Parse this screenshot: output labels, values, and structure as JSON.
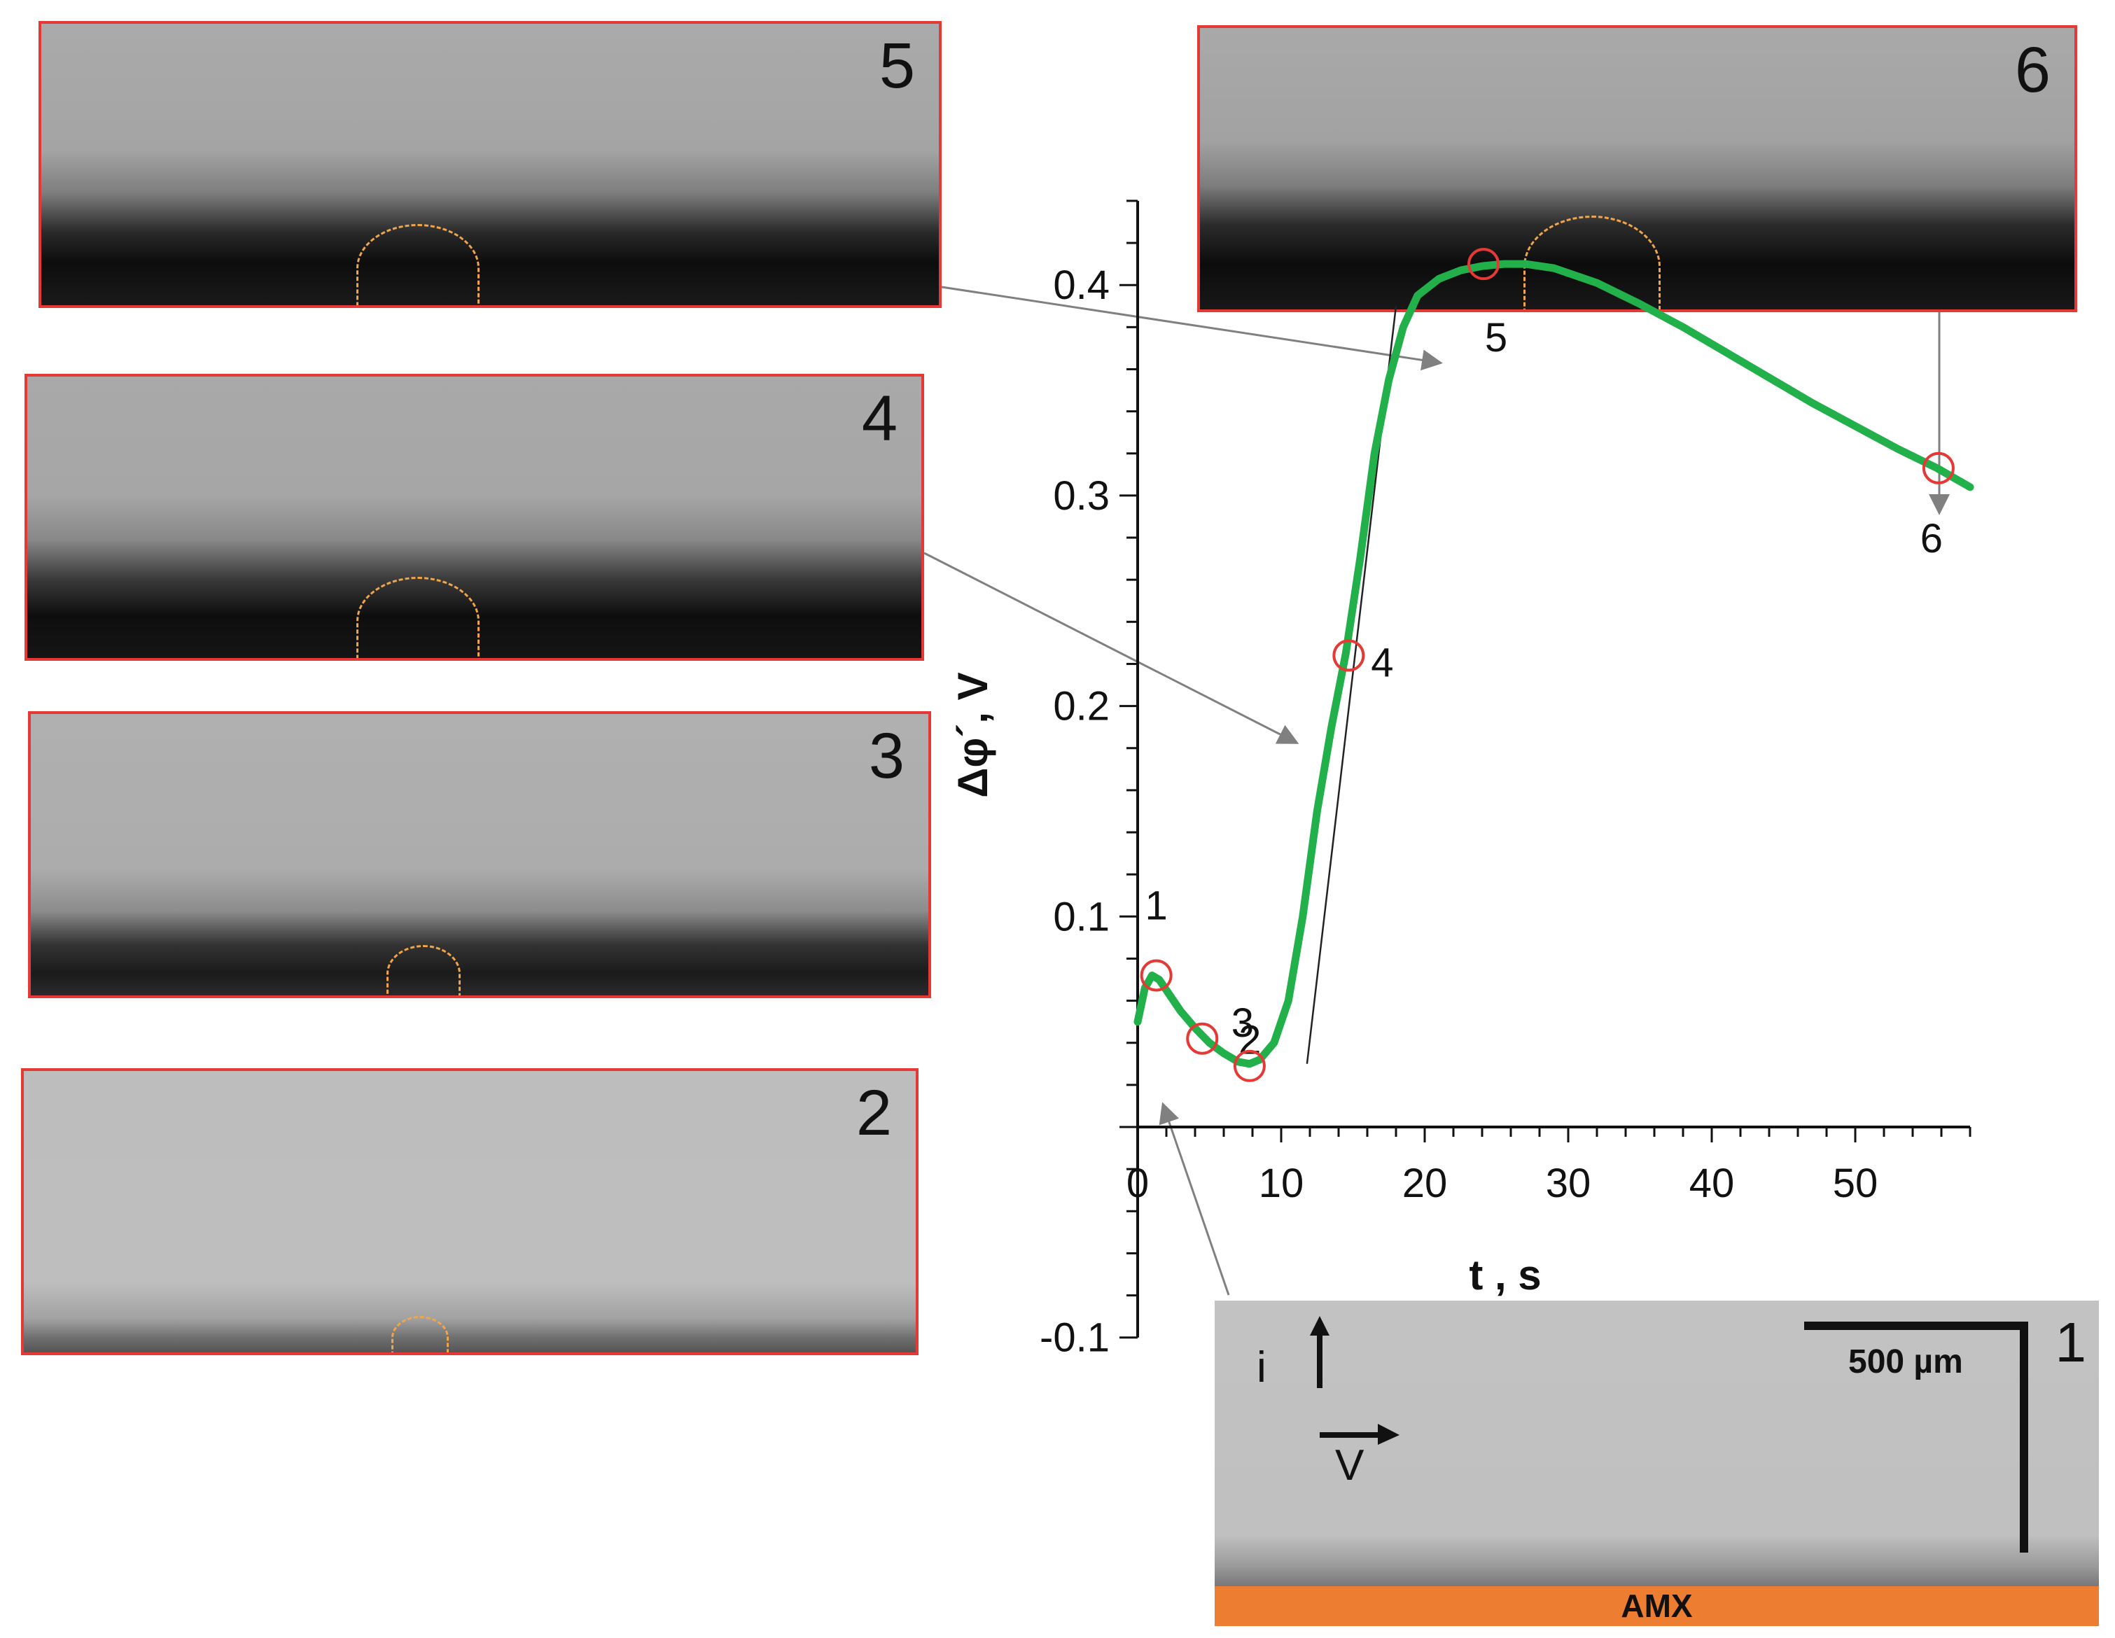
{
  "panels": {
    "p5": {
      "label": "5"
    },
    "p6": {
      "label": "6"
    },
    "p4": {
      "label": "4"
    },
    "p3": {
      "label": "3"
    },
    "p2": {
      "label": "2"
    },
    "p1": {
      "label": "1",
      "scale_label": "500 µm",
      "i_label": "i",
      "v_label": "V",
      "membrane_label": "AMX"
    }
  },
  "colors": {
    "curve": "#22b04a",
    "markers": "#e53935",
    "membrane": "#ed7d31",
    "bubble_outline": "#f0a54a",
    "panel_border": "#e53935"
  },
  "chart_data": {
    "type": "line",
    "xlabel": "t , s",
    "ylabel": "Δφ´, V",
    "xlim": [
      0,
      58
    ],
    "ylim": [
      -0.1,
      0.44
    ],
    "x_ticks": [
      0,
      10,
      20,
      30,
      40,
      50
    ],
    "x_tick_labels": [
      "0",
      "10",
      "20",
      "30",
      "40",
      "50"
    ],
    "y_ticks": [
      -0.1,
      0.1,
      0.2,
      0.3,
      0.4
    ],
    "y_tick_labels": [
      "-0.1",
      "0.1",
      "0.2",
      "0.3",
      "0.4"
    ],
    "grid": false,
    "series": [
      {
        "x": [
          0,
          0.5,
          1,
          1.5,
          2,
          3,
          4,
          5,
          6,
          7,
          7.8,
          8.5,
          9.5,
          10.5,
          11.5,
          12.5,
          13.5,
          14.5,
          15.5,
          16.5,
          17.5,
          18.5,
          19.5,
          21,
          22.5,
          24,
          25.5,
          27,
          29,
          32,
          35,
          38,
          41,
          44,
          47,
          50,
          53,
          55.7,
          58
        ],
        "y": [
          0.05,
          0.066,
          0.072,
          0.07,
          0.065,
          0.055,
          0.047,
          0.04,
          0.035,
          0.031,
          0.03,
          0.032,
          0.04,
          0.06,
          0.1,
          0.15,
          0.19,
          0.225,
          0.27,
          0.32,
          0.355,
          0.38,
          0.395,
          0.403,
          0.407,
          0.409,
          0.41,
          0.41,
          0.408,
          0.401,
          0.391,
          0.38,
          0.368,
          0.356,
          0.344,
          0.333,
          0.322,
          0.313,
          0.304
        ]
      }
    ],
    "markers": [
      {
        "label": "1",
        "x": 1.3,
        "y": 0.072
      },
      {
        "label": "2",
        "x": 4.5,
        "y": 0.042
      },
      {
        "label": "3",
        "x": 7.8,
        "y": 0.029
      },
      {
        "label": "4",
        "x": 14.7,
        "y": 0.224
      },
      {
        "label": "5",
        "x": 24.1,
        "y": 0.41
      },
      {
        "label": "6",
        "x": 55.8,
        "y": 0.313
      }
    ],
    "tangent_line": {
      "x": [
        11.8,
        18
      ],
      "y": [
        0.03,
        0.39
      ]
    }
  }
}
